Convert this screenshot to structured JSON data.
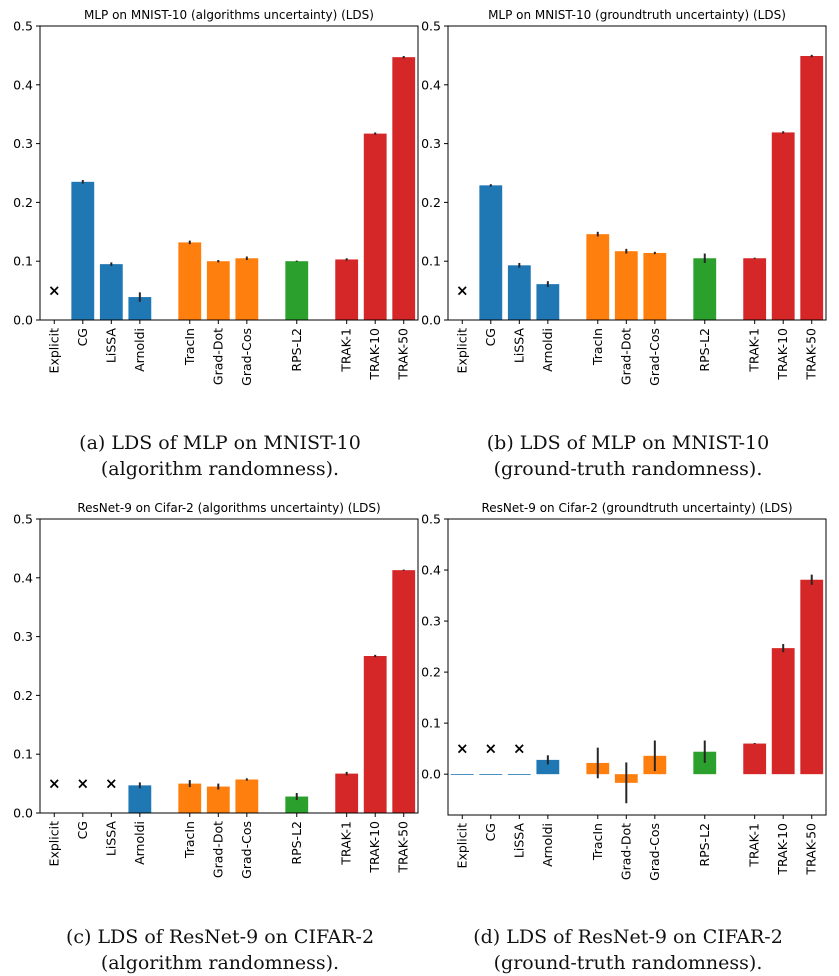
{
  "chart_data": [
    {
      "type": "bar",
      "title": "MLP on MNIST-10 (algorithms uncertainty) (LDS)",
      "categories": [
        "Explicit",
        "CG",
        "LiSSA",
        "Arnoldi",
        "TracIn",
        "Grad-Dot",
        "Grad-Cos",
        "RPS-L2",
        "TRAK-1",
        "TRAK-10",
        "TRAK-50"
      ],
      "values": [
        null,
        0.235,
        0.095,
        0.039,
        0.132,
        0.1,
        0.105,
        0.1,
        0.103,
        0.317,
        0.447
      ],
      "errors": [
        0,
        0.003,
        0.003,
        0.008,
        0.003,
        0.002,
        0.003,
        0.001,
        0.002,
        0.002,
        0.002
      ],
      "missing_marker": [
        0.05,
        null,
        null,
        null,
        null,
        null,
        null,
        null,
        null,
        null,
        null
      ],
      "group_colors": [
        "#1f77b4",
        "#1f77b4",
        "#1f77b4",
        "#1f77b4",
        "#ff7f0e",
        "#ff7f0e",
        "#ff7f0e",
        "#2ca02c",
        "#d62728",
        "#d62728",
        "#d62728"
      ],
      "ylim": [
        0,
        0.5
      ],
      "yticks": [
        "0.0",
        "0.1",
        "0.2",
        "0.3",
        "0.4",
        "0.5"
      ],
      "ytick_values": [
        0,
        0.1,
        0.2,
        0.3,
        0.4,
        0.5
      ],
      "xlabel": "",
      "ylabel": "",
      "grid": false
    },
    {
      "type": "bar",
      "title": "MLP on MNIST-10 (groundtruth uncertainty) (LDS)",
      "categories": [
        "Explicit",
        "CG",
        "LiSSA",
        "Arnoldi",
        "TracIn",
        "Grad-Dot",
        "Grad-Cos",
        "RPS-L2",
        "TRAK-1",
        "TRAK-10",
        "TRAK-50"
      ],
      "values": [
        null,
        0.229,
        0.093,
        0.061,
        0.146,
        0.117,
        0.114,
        0.105,
        0.105,
        0.319,
        0.449
      ],
      "errors": [
        0,
        0.002,
        0.004,
        0.005,
        0.004,
        0.004,
        0.002,
        0.008,
        0.001,
        0.002,
        0.002
      ],
      "missing_marker": [
        0.05,
        null,
        null,
        null,
        null,
        null,
        null,
        null,
        null,
        null,
        null
      ],
      "group_colors": [
        "#1f77b4",
        "#1f77b4",
        "#1f77b4",
        "#1f77b4",
        "#ff7f0e",
        "#ff7f0e",
        "#ff7f0e",
        "#2ca02c",
        "#d62728",
        "#d62728",
        "#d62728"
      ],
      "ylim": [
        0,
        0.5
      ],
      "yticks": [
        "0.0",
        "0.1",
        "0.2",
        "0.3",
        "0.4",
        "0.5"
      ],
      "ytick_values": [
        0,
        0.1,
        0.2,
        0.3,
        0.4,
        0.5
      ],
      "xlabel": "",
      "ylabel": "",
      "grid": false
    },
    {
      "type": "bar",
      "title": "ResNet-9 on Cifar-2 (algorithms uncertainty) (LDS)",
      "categories": [
        "Explicit",
        "CG",
        "LiSSA",
        "Arnoldi",
        "TracIn",
        "Grad-Dot",
        "Grad-Cos",
        "RPS-L2",
        "TRAK-1",
        "TRAK-10",
        "TRAK-50"
      ],
      "values": [
        null,
        null,
        null,
        0.047,
        0.05,
        0.045,
        0.057,
        0.028,
        0.067,
        0.267,
        0.413
      ],
      "errors": [
        0,
        0,
        0,
        0.005,
        0.006,
        0.005,
        0.002,
        0.006,
        0.003,
        0.002,
        0.001
      ],
      "missing_marker": [
        0.05,
        0.05,
        0.05,
        null,
        null,
        null,
        null,
        null,
        null,
        null,
        null
      ],
      "group_colors": [
        "#1f77b4",
        "#1f77b4",
        "#1f77b4",
        "#1f77b4",
        "#ff7f0e",
        "#ff7f0e",
        "#ff7f0e",
        "#2ca02c",
        "#d62728",
        "#d62728",
        "#d62728"
      ],
      "ylim": [
        0,
        0.5
      ],
      "yticks": [
        "0.0",
        "0.1",
        "0.2",
        "0.3",
        "0.4",
        "0.5"
      ],
      "ytick_values": [
        0,
        0.1,
        0.2,
        0.3,
        0.4,
        0.5
      ],
      "xlabel": "",
      "ylabel": "",
      "grid": false
    },
    {
      "type": "bar",
      "title": "ResNet-9 on Cifar-2 (groundtruth uncertainty) (LDS)",
      "categories": [
        "Explicit",
        "CG",
        "LiSSA",
        "Arnoldi",
        "TracIn",
        "Grad-Dot",
        "Grad-Cos",
        "RPS-L2",
        "TRAK-1",
        "TRAK-10",
        "TRAK-50"
      ],
      "values": [
        0.0,
        0.0,
        0.0,
        0.028,
        0.022,
        -0.017,
        0.036,
        0.044,
        0.06,
        0.247,
        0.381
      ],
      "errors": [
        0,
        0,
        0,
        0.009,
        0.03,
        0.04,
        0.03,
        0.022,
        0.001,
        0.008,
        0.01
      ],
      "missing_marker": [
        0.05,
        0.05,
        0.05,
        null,
        null,
        null,
        null,
        null,
        null,
        null,
        null
      ],
      "group_colors": [
        "#1f77b4",
        "#1f77b4",
        "#1f77b4",
        "#1f77b4",
        "#ff7f0e",
        "#ff7f0e",
        "#ff7f0e",
        "#2ca02c",
        "#d62728",
        "#d62728",
        "#d62728"
      ],
      "ylim": [
        -0.08,
        0.5
      ],
      "yticks": [
        "0.0",
        "0.1",
        "0.2",
        "0.3",
        "0.4",
        "0.5"
      ],
      "ytick_values": [
        0,
        0.1,
        0.2,
        0.3,
        0.4,
        0.5
      ],
      "xlabel": "",
      "ylabel": "",
      "grid": false
    }
  ],
  "captions": [
    {
      "line1": "(a) LDS of MLP on MNIST-10",
      "line2": "(algorithm randomness)."
    },
    {
      "line1": "(b) LDS of MLP on MNIST-10",
      "line2": "(ground-truth randomness)."
    },
    {
      "line1": "(c) LDS of ResNet-9 on CIFAR-2",
      "line2": "(algorithm randomness)."
    },
    {
      "line1": "(d) LDS of ResNet-9 on CIFAR-2",
      "line2": "(ground-truth randomness)."
    }
  ],
  "colors": {
    "missing_marker": "#ff0000",
    "axis": "#000000",
    "errorbar": "#262626"
  }
}
